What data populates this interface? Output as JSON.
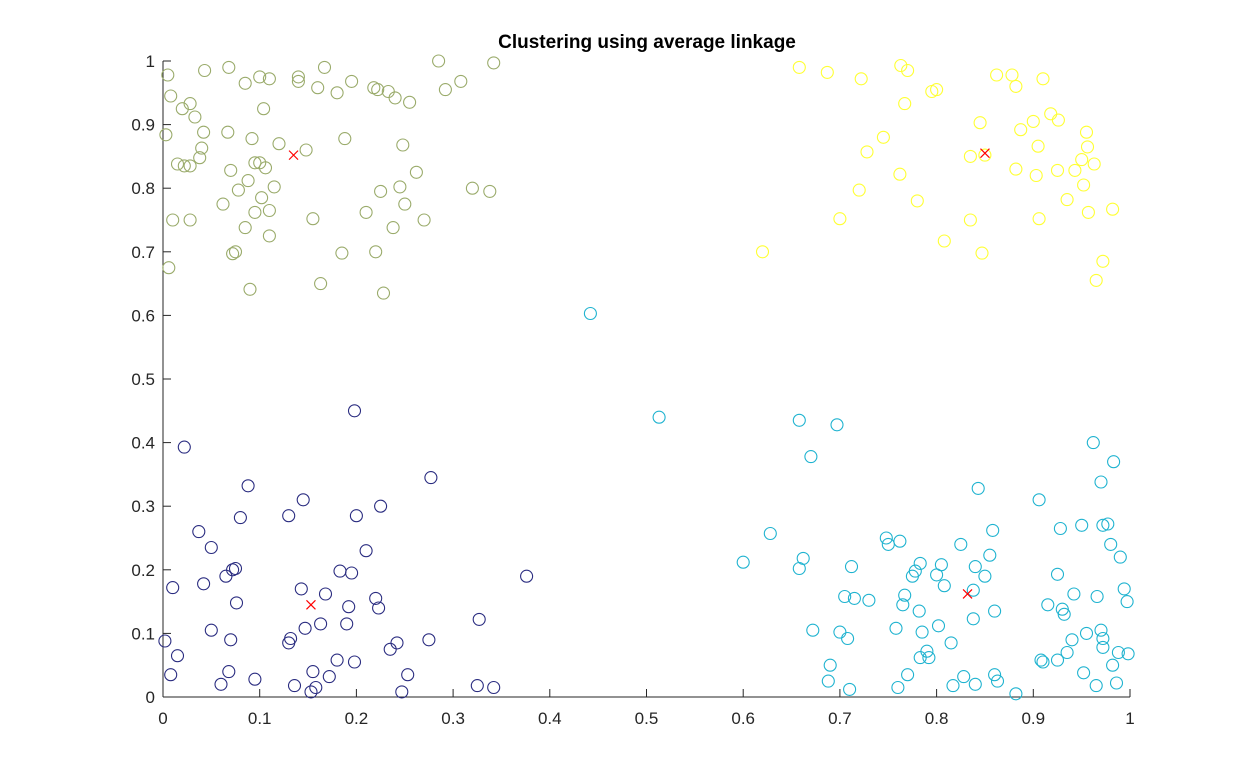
{
  "chart_data": {
    "type": "scatter",
    "title": "Clustering using average linkage",
    "xlabel": "",
    "ylabel": "",
    "xlim": [
      0,
      1
    ],
    "ylim": [
      0,
      1
    ],
    "xticks": [
      "0",
      "0.1",
      "0.2",
      "0.3",
      "0.4",
      "0.5",
      "0.6",
      "0.7",
      "0.8",
      "0.9",
      "1"
    ],
    "yticks": [
      "0",
      "0.1",
      "0.2",
      "0.3",
      "0.4",
      "0.5",
      "0.6",
      "0.7",
      "0.8",
      "0.9",
      "1"
    ],
    "grid": false,
    "legend": "none",
    "series": [
      {
        "color": "#9aab6b",
        "marker": "circle",
        "points": [
          [
            0.005,
            0.978
          ],
          [
            0.008,
            0.945
          ],
          [
            0.003,
            0.884
          ],
          [
            0.01,
            0.75
          ],
          [
            0.006,
            0.675
          ],
          [
            0.015,
            0.838
          ],
          [
            0.02,
            0.925
          ],
          [
            0.022,
            0.835
          ],
          [
            0.028,
            0.835
          ],
          [
            0.028,
            0.933
          ],
          [
            0.028,
            0.75
          ],
          [
            0.033,
            0.912
          ],
          [
            0.038,
            0.848
          ],
          [
            0.04,
            0.863
          ],
          [
            0.042,
            0.888
          ],
          [
            0.043,
            0.985
          ],
          [
            0.062,
            0.775
          ],
          [
            0.067,
            0.888
          ],
          [
            0.068,
            0.99
          ],
          [
            0.07,
            0.828
          ],
          [
            0.072,
            0.697
          ],
          [
            0.075,
            0.7
          ],
          [
            0.078,
            0.797
          ],
          [
            0.085,
            0.738
          ],
          [
            0.085,
            0.965
          ],
          [
            0.088,
            0.812
          ],
          [
            0.09,
            0.641
          ],
          [
            0.092,
            0.878
          ],
          [
            0.095,
            0.762
          ],
          [
            0.095,
            0.84
          ],
          [
            0.1,
            0.84
          ],
          [
            0.1,
            0.975
          ],
          [
            0.102,
            0.785
          ],
          [
            0.104,
            0.925
          ],
          [
            0.106,
            0.832
          ],
          [
            0.11,
            0.765
          ],
          [
            0.11,
            0.725
          ],
          [
            0.11,
            0.972
          ],
          [
            0.115,
            0.802
          ],
          [
            0.12,
            0.87
          ],
          [
            0.14,
            0.968
          ],
          [
            0.14,
            0.975
          ],
          [
            0.148,
            0.86
          ],
          [
            0.155,
            0.752
          ],
          [
            0.16,
            0.958
          ],
          [
            0.163,
            0.65
          ],
          [
            0.167,
            0.99
          ],
          [
            0.18,
            0.95
          ],
          [
            0.185,
            0.698
          ],
          [
            0.188,
            0.878
          ],
          [
            0.195,
            0.968
          ],
          [
            0.21,
            0.762
          ],
          [
            0.218,
            0.958
          ],
          [
            0.22,
            0.7
          ],
          [
            0.222,
            0.955
          ],
          [
            0.225,
            0.795
          ],
          [
            0.228,
            0.635
          ],
          [
            0.233,
            0.952
          ],
          [
            0.238,
            0.738
          ],
          [
            0.24,
            0.942
          ],
          [
            0.245,
            0.802
          ],
          [
            0.248,
            0.868
          ],
          [
            0.25,
            0.775
          ],
          [
            0.255,
            0.935
          ],
          [
            0.262,
            0.825
          ],
          [
            0.27,
            0.75
          ],
          [
            0.285,
            1.0
          ],
          [
            0.292,
            0.955
          ],
          [
            0.308,
            0.968
          ],
          [
            0.32,
            0.8
          ],
          [
            0.338,
            0.795
          ],
          [
            0.342,
            0.997
          ]
        ]
      },
      {
        "color": "#ffff33",
        "marker": "circle",
        "points": [
          [
            0.62,
            0.7
          ],
          [
            0.658,
            0.99
          ],
          [
            0.687,
            0.982
          ],
          [
            0.7,
            0.752
          ],
          [
            0.72,
            0.797
          ],
          [
            0.722,
            0.972
          ],
          [
            0.728,
            0.857
          ],
          [
            0.745,
            0.88
          ],
          [
            0.762,
            0.822
          ],
          [
            0.763,
            0.993
          ],
          [
            0.767,
            0.933
          ],
          [
            0.77,
            0.985
          ],
          [
            0.78,
            0.78
          ],
          [
            0.795,
            0.952
          ],
          [
            0.8,
            0.955
          ],
          [
            0.808,
            0.717
          ],
          [
            0.835,
            0.75
          ],
          [
            0.835,
            0.85
          ],
          [
            0.845,
            0.903
          ],
          [
            0.847,
            0.698
          ],
          [
            0.85,
            0.852
          ],
          [
            0.862,
            0.978
          ],
          [
            0.878,
            0.978
          ],
          [
            0.882,
            0.96
          ],
          [
            0.882,
            0.83
          ],
          [
            0.887,
            0.892
          ],
          [
            0.9,
            0.905
          ],
          [
            0.903,
            0.82
          ],
          [
            0.905,
            0.866
          ],
          [
            0.906,
            0.752
          ],
          [
            0.91,
            0.972
          ],
          [
            0.918,
            0.917
          ],
          [
            0.925,
            0.828
          ],
          [
            0.926,
            0.907
          ],
          [
            0.935,
            0.782
          ],
          [
            0.943,
            0.828
          ],
          [
            0.95,
            0.845
          ],
          [
            0.952,
            0.805
          ],
          [
            0.955,
            0.888
          ],
          [
            0.956,
            0.865
          ],
          [
            0.957,
            0.762
          ],
          [
            0.963,
            0.838
          ],
          [
            0.965,
            0.655
          ],
          [
            0.972,
            0.685
          ],
          [
            0.982,
            0.767
          ]
        ]
      },
      {
        "color": "#1fb3d0",
        "marker": "circle",
        "points": [
          [
            0.442,
            0.603
          ],
          [
            0.513,
            0.44
          ],
          [
            0.6,
            0.212
          ],
          [
            0.628,
            0.257
          ],
          [
            0.658,
            0.435
          ],
          [
            0.658,
            0.202
          ],
          [
            0.662,
            0.218
          ],
          [
            0.67,
            0.378
          ],
          [
            0.672,
            0.105
          ],
          [
            0.688,
            0.025
          ],
          [
            0.69,
            0.05
          ],
          [
            0.697,
            0.428
          ],
          [
            0.7,
            0.102
          ],
          [
            0.705,
            0.158
          ],
          [
            0.708,
            0.092
          ],
          [
            0.71,
            0.012
          ],
          [
            0.712,
            0.205
          ],
          [
            0.715,
            0.155
          ],
          [
            0.73,
            0.152
          ],
          [
            0.748,
            0.25
          ],
          [
            0.75,
            0.24
          ],
          [
            0.758,
            0.108
          ],
          [
            0.76,
            0.015
          ],
          [
            0.762,
            0.245
          ],
          [
            0.765,
            0.145
          ],
          [
            0.767,
            0.16
          ],
          [
            0.77,
            0.035
          ],
          [
            0.775,
            0.19
          ],
          [
            0.778,
            0.198
          ],
          [
            0.782,
            0.135
          ],
          [
            0.783,
            0.21
          ],
          [
            0.783,
            0.062
          ],
          [
            0.785,
            0.102
          ],
          [
            0.79,
            0.072
          ],
          [
            0.792,
            0.062
          ],
          [
            0.8,
            0.192
          ],
          [
            0.802,
            0.112
          ],
          [
            0.805,
            0.208
          ],
          [
            0.808,
            0.175
          ],
          [
            0.815,
            0.085
          ],
          [
            0.817,
            0.018
          ],
          [
            0.825,
            0.24
          ],
          [
            0.828,
            0.032
          ],
          [
            0.838,
            0.123
          ],
          [
            0.838,
            0.168
          ],
          [
            0.84,
            0.02
          ],
          [
            0.84,
            0.205
          ],
          [
            0.843,
            0.328
          ],
          [
            0.85,
            0.19
          ],
          [
            0.855,
            0.223
          ],
          [
            0.858,
            0.262
          ],
          [
            0.86,
            0.035
          ],
          [
            0.86,
            0.135
          ],
          [
            0.863,
            0.025
          ],
          [
            0.882,
            0.005
          ],
          [
            0.906,
            0.31
          ],
          [
            0.908,
            0.058
          ],
          [
            0.91,
            0.055
          ],
          [
            0.915,
            0.145
          ],
          [
            0.925,
            0.058
          ],
          [
            0.925,
            0.193
          ],
          [
            0.928,
            0.265
          ],
          [
            0.93,
            0.138
          ],
          [
            0.932,
            0.13
          ],
          [
            0.935,
            0.07
          ],
          [
            0.94,
            0.09
          ],
          [
            0.942,
            0.162
          ],
          [
            0.95,
            0.27
          ],
          [
            0.952,
            0.038
          ],
          [
            0.955,
            0.1
          ],
          [
            0.962,
            0.4
          ],
          [
            0.965,
            0.018
          ],
          [
            0.966,
            0.158
          ],
          [
            0.97,
            0.338
          ],
          [
            0.97,
            0.105
          ],
          [
            0.972,
            0.078
          ],
          [
            0.972,
            0.092
          ],
          [
            0.972,
            0.27
          ],
          [
            0.977,
            0.272
          ],
          [
            0.98,
            0.24
          ],
          [
            0.982,
            0.05
          ],
          [
            0.983,
            0.37
          ],
          [
            0.986,
            0.022
          ],
          [
            0.988,
            0.07
          ],
          [
            0.99,
            0.22
          ],
          [
            0.994,
            0.17
          ],
          [
            0.997,
            0.15
          ],
          [
            0.998,
            0.068
          ]
        ]
      },
      {
        "color": "#2a2c80",
        "marker": "circle",
        "points": [
          [
            0.002,
            0.088
          ],
          [
            0.008,
            0.035
          ],
          [
            0.01,
            0.172
          ],
          [
            0.015,
            0.065
          ],
          [
            0.022,
            0.393
          ],
          [
            0.037,
            0.26
          ],
          [
            0.042,
            0.178
          ],
          [
            0.05,
            0.105
          ],
          [
            0.05,
            0.235
          ],
          [
            0.06,
            0.02
          ],
          [
            0.065,
            0.19
          ],
          [
            0.068,
            0.04
          ],
          [
            0.07,
            0.09
          ],
          [
            0.072,
            0.2
          ],
          [
            0.075,
            0.202
          ],
          [
            0.076,
            0.148
          ],
          [
            0.08,
            0.282
          ],
          [
            0.088,
            0.332
          ],
          [
            0.095,
            0.028
          ],
          [
            0.13,
            0.285
          ],
          [
            0.13,
            0.085
          ],
          [
            0.132,
            0.092
          ],
          [
            0.136,
            0.018
          ],
          [
            0.143,
            0.17
          ],
          [
            0.145,
            0.31
          ],
          [
            0.147,
            0.108
          ],
          [
            0.153,
            0.008
          ],
          [
            0.155,
            0.04
          ],
          [
            0.158,
            0.015
          ],
          [
            0.163,
            0.115
          ],
          [
            0.168,
            0.162
          ],
          [
            0.172,
            0.032
          ],
          [
            0.18,
            0.058
          ],
          [
            0.183,
            0.198
          ],
          [
            0.19,
            0.115
          ],
          [
            0.192,
            0.142
          ],
          [
            0.195,
            0.195
          ],
          [
            0.198,
            0.45
          ],
          [
            0.198,
            0.055
          ],
          [
            0.2,
            0.285
          ],
          [
            0.21,
            0.23
          ],
          [
            0.22,
            0.155
          ],
          [
            0.223,
            0.14
          ],
          [
            0.225,
            0.3
          ],
          [
            0.235,
            0.075
          ],
          [
            0.242,
            0.085
          ],
          [
            0.247,
            0.008
          ],
          [
            0.253,
            0.035
          ],
          [
            0.275,
            0.09
          ],
          [
            0.277,
            0.345
          ],
          [
            0.325,
            0.018
          ],
          [
            0.327,
            0.122
          ],
          [
            0.342,
            0.015
          ],
          [
            0.376,
            0.19
          ]
        ]
      }
    ],
    "centroids": {
      "color": "#ff0000",
      "marker": "x",
      "points": [
        [
          0.135,
          0.852
        ],
        [
          0.85,
          0.855
        ],
        [
          0.153,
          0.145
        ],
        [
          0.832,
          0.162
        ]
      ]
    }
  }
}
